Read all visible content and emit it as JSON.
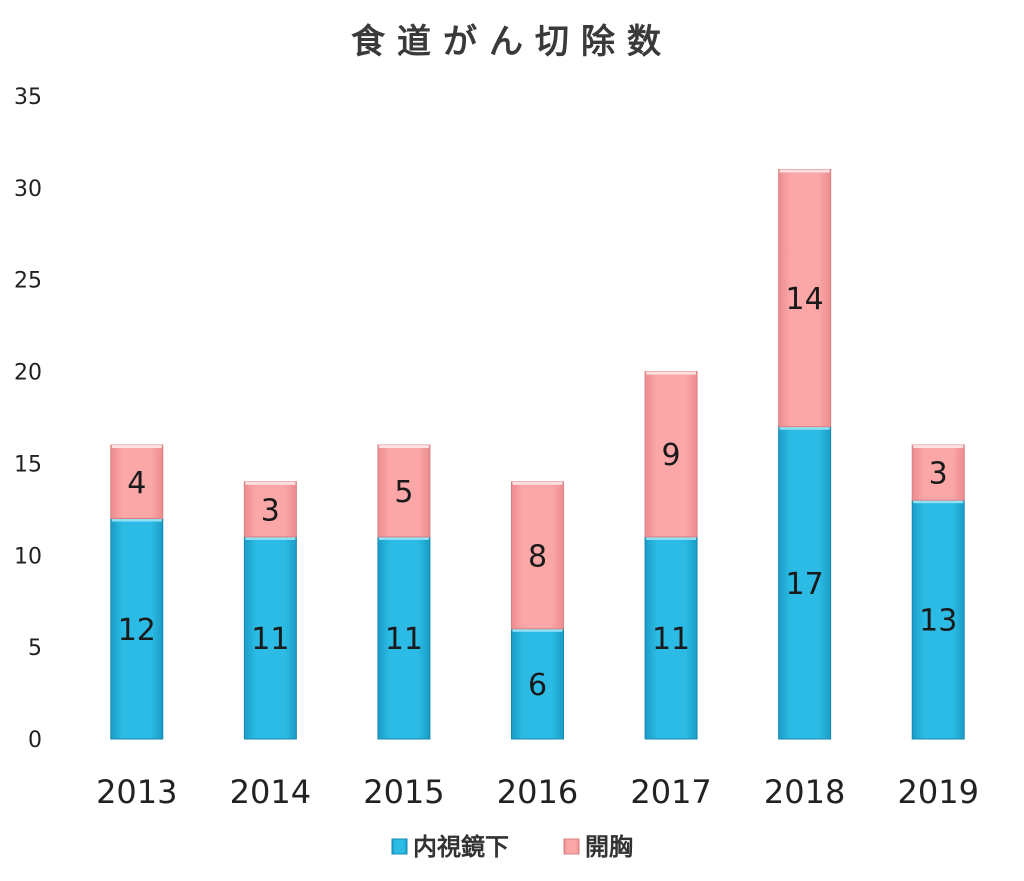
{
  "chart_data": {
    "type": "bar",
    "stacked": true,
    "title": "食道がん切除数",
    "categories": [
      "2013",
      "2014",
      "2015",
      "2016",
      "2017",
      "2018",
      "2019"
    ],
    "series": [
      {
        "name": "内視鏡下",
        "color": "#2bb9e2",
        "values": [
          12,
          11,
          11,
          6,
          11,
          17,
          13
        ]
      },
      {
        "name": "開胸",
        "color": "#f9a3a4",
        "values": [
          4,
          3,
          5,
          8,
          9,
          14,
          3
        ]
      }
    ],
    "ylim": [
      0,
      35
    ],
    "yticks": [
      0,
      5,
      10,
      15,
      20,
      25,
      30,
      35
    ],
    "xlabel": "",
    "ylabel": "",
    "grid": false,
    "legend_position": "bottom"
  }
}
